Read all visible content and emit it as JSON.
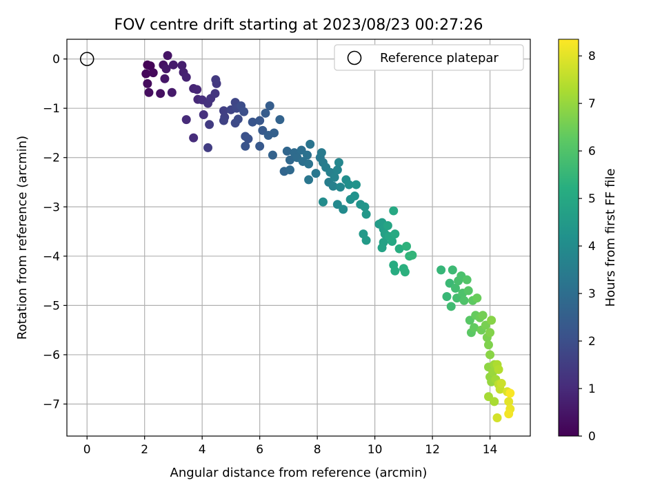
{
  "chart_data": {
    "type": "scatter",
    "title": "FOV centre drift starting at 2023/08/23 00:27:26",
    "xlabel": "Angular distance from reference (arcmin)",
    "ylabel": "Rotation from reference (arcmin)",
    "xlim": [
      -0.7,
      15.4
    ],
    "ylim": [
      -7.65,
      0.4
    ],
    "xticks": [
      0,
      2,
      4,
      6,
      8,
      10,
      12,
      14
    ],
    "yticks": [
      0,
      -1,
      -2,
      -3,
      -4,
      -5,
      -6,
      -7
    ],
    "grid": true,
    "legend": {
      "placement": "top-right",
      "entries": [
        "Reference platepar"
      ]
    },
    "colorbar": {
      "label": "Hours from first FF file",
      "range": [
        0,
        8.35
      ],
      "ticks": [
        0,
        1,
        2,
        3,
        4,
        5,
        6,
        7,
        8
      ],
      "colormap": "viridis"
    },
    "reference_point": {
      "x": 0,
      "y": 0
    },
    "points": [
      {
        "x": 2.1,
        "y": -0.12,
        "h": 0.05
      },
      {
        "x": 2.2,
        "y": -0.14,
        "h": 0.1
      },
      {
        "x": 2.05,
        "y": -0.3,
        "h": 0.15
      },
      {
        "x": 2.3,
        "y": -0.28,
        "h": 0.2
      },
      {
        "x": 2.1,
        "y": -0.5,
        "h": 0.25
      },
      {
        "x": 2.15,
        "y": -0.68,
        "h": 0.3
      },
      {
        "x": 2.55,
        "y": -0.7,
        "h": 0.35
      },
      {
        "x": 2.65,
        "y": -0.12,
        "h": 0.4
      },
      {
        "x": 2.8,
        "y": 0.07,
        "h": 0.45
      },
      {
        "x": 2.7,
        "y": -0.4,
        "h": 0.5
      },
      {
        "x": 2.75,
        "y": -0.2,
        "h": 0.55
      },
      {
        "x": 2.95,
        "y": -0.68,
        "h": 0.6
      },
      {
        "x": 3.0,
        "y": -0.12,
        "h": 0.65
      },
      {
        "x": 3.3,
        "y": -0.13,
        "h": 0.7
      },
      {
        "x": 3.35,
        "y": -0.27,
        "h": 0.75
      },
      {
        "x": 3.45,
        "y": -0.37,
        "h": 0.8
      },
      {
        "x": 3.7,
        "y": -0.6,
        "h": 0.85
      },
      {
        "x": 3.82,
        "y": -0.62,
        "h": 0.9
      },
      {
        "x": 3.85,
        "y": -0.82,
        "h": 0.95
      },
      {
        "x": 3.45,
        "y": -1.23,
        "h": 1.0
      },
      {
        "x": 3.7,
        "y": -1.6,
        "h": 1.05
      },
      {
        "x": 4.0,
        "y": -0.83,
        "h": 1.1
      },
      {
        "x": 4.05,
        "y": -1.13,
        "h": 1.15
      },
      {
        "x": 4.2,
        "y": -0.9,
        "h": 1.2
      },
      {
        "x": 4.3,
        "y": -0.8,
        "h": 1.25
      },
      {
        "x": 4.45,
        "y": -0.7,
        "h": 1.3
      },
      {
        "x": 4.5,
        "y": -0.5,
        "h": 1.35
      },
      {
        "x": 4.47,
        "y": -0.42,
        "h": 1.4
      },
      {
        "x": 4.25,
        "y": -1.33,
        "h": 1.45
      },
      {
        "x": 4.2,
        "y": -1.8,
        "h": 1.5
      },
      {
        "x": 4.75,
        "y": -1.05,
        "h": 1.55
      },
      {
        "x": 4.78,
        "y": -1.18,
        "h": 1.6
      },
      {
        "x": 4.75,
        "y": -1.25,
        "h": 1.65
      },
      {
        "x": 5.0,
        "y": -1.03,
        "h": 1.7
      },
      {
        "x": 5.15,
        "y": -0.88,
        "h": 1.75
      },
      {
        "x": 5.2,
        "y": -1.0,
        "h": 1.8
      },
      {
        "x": 5.15,
        "y": -1.3,
        "h": 1.85
      },
      {
        "x": 5.25,
        "y": -1.22,
        "h": 1.9
      },
      {
        "x": 5.35,
        "y": -0.95,
        "h": 1.95
      },
      {
        "x": 5.45,
        "y": -1.07,
        "h": 2.0
      },
      {
        "x": 5.5,
        "y": -1.57,
        "h": 2.05
      },
      {
        "x": 5.6,
        "y": -1.62,
        "h": 2.1
      },
      {
        "x": 5.5,
        "y": -1.77,
        "h": 2.15
      },
      {
        "x": 5.75,
        "y": -1.28,
        "h": 2.2
      },
      {
        "x": 6.0,
        "y": -1.25,
        "h": 2.25
      },
      {
        "x": 6.0,
        "y": -1.77,
        "h": 2.3
      },
      {
        "x": 6.1,
        "y": -1.45,
        "h": 2.35
      },
      {
        "x": 6.2,
        "y": -1.1,
        "h": 2.4
      },
      {
        "x": 6.35,
        "y": -0.95,
        "h": 2.45
      },
      {
        "x": 6.3,
        "y": -1.55,
        "h": 2.5
      },
      {
        "x": 6.5,
        "y": -1.5,
        "h": 2.55
      },
      {
        "x": 6.45,
        "y": -1.95,
        "h": 2.6
      },
      {
        "x": 6.7,
        "y": -1.23,
        "h": 2.65
      },
      {
        "x": 6.85,
        "y": -2.28,
        "h": 2.7
      },
      {
        "x": 6.95,
        "y": -1.87,
        "h": 2.75
      },
      {
        "x": 7.05,
        "y": -2.05,
        "h": 2.8
      },
      {
        "x": 7.05,
        "y": -2.25,
        "h": 2.85
      },
      {
        "x": 7.2,
        "y": -1.9,
        "h": 2.9
      },
      {
        "x": 7.3,
        "y": -2.0,
        "h": 2.95
      },
      {
        "x": 7.45,
        "y": -1.85,
        "h": 3.0
      },
      {
        "x": 7.5,
        "y": -2.08,
        "h": 3.05
      },
      {
        "x": 7.65,
        "y": -1.95,
        "h": 3.1
      },
      {
        "x": 7.7,
        "y": -2.13,
        "h": 3.15
      },
      {
        "x": 7.75,
        "y": -1.73,
        "h": 3.2
      },
      {
        "x": 7.7,
        "y": -2.45,
        "h": 3.25
      },
      {
        "x": 7.95,
        "y": -2.32,
        "h": 3.3
      },
      {
        "x": 8.1,
        "y": -2.0,
        "h": 3.35
      },
      {
        "x": 8.15,
        "y": -1.9,
        "h": 3.4
      },
      {
        "x": 8.2,
        "y": -2.1,
        "h": 3.45
      },
      {
        "x": 8.3,
        "y": -2.2,
        "h": 3.5
      },
      {
        "x": 8.4,
        "y": -2.5,
        "h": 3.55
      },
      {
        "x": 8.45,
        "y": -2.3,
        "h": 3.6
      },
      {
        "x": 8.55,
        "y": -2.58,
        "h": 3.65
      },
      {
        "x": 8.6,
        "y": -2.4,
        "h": 3.7
      },
      {
        "x": 8.7,
        "y": -2.25,
        "h": 3.75
      },
      {
        "x": 8.75,
        "y": -2.1,
        "h": 3.8
      },
      {
        "x": 8.8,
        "y": -2.6,
        "h": 3.85
      },
      {
        "x": 8.7,
        "y": -2.95,
        "h": 3.9
      },
      {
        "x": 8.9,
        "y": -3.05,
        "h": 3.95
      },
      {
        "x": 8.2,
        "y": -2.9,
        "h": 4.0
      },
      {
        "x": 9.0,
        "y": -2.45,
        "h": 4.05
      },
      {
        "x": 9.1,
        "y": -2.55,
        "h": 4.1
      },
      {
        "x": 9.15,
        "y": -2.85,
        "h": 4.15
      },
      {
        "x": 9.3,
        "y": -2.78,
        "h": 4.2
      },
      {
        "x": 9.35,
        "y": -2.55,
        "h": 4.25
      },
      {
        "x": 9.5,
        "y": -2.95,
        "h": 4.3
      },
      {
        "x": 9.65,
        "y": -3.0,
        "h": 4.35
      },
      {
        "x": 9.7,
        "y": -3.15,
        "h": 4.4
      },
      {
        "x": 9.6,
        "y": -3.55,
        "h": 4.45
      },
      {
        "x": 9.7,
        "y": -3.68,
        "h": 4.5
      },
      {
        "x": 10.15,
        "y": -3.35,
        "h": 4.55
      },
      {
        "x": 10.25,
        "y": -3.32,
        "h": 4.6
      },
      {
        "x": 10.3,
        "y": -3.45,
        "h": 4.65
      },
      {
        "x": 10.35,
        "y": -3.55,
        "h": 4.7
      },
      {
        "x": 10.3,
        "y": -3.72,
        "h": 4.75
      },
      {
        "x": 10.25,
        "y": -3.83,
        "h": 4.8
      },
      {
        "x": 10.45,
        "y": -3.38,
        "h": 4.85
      },
      {
        "x": 10.5,
        "y": -3.6,
        "h": 4.9
      },
      {
        "x": 10.6,
        "y": -3.7,
        "h": 4.95
      },
      {
        "x": 10.65,
        "y": -3.08,
        "h": 5.0
      },
      {
        "x": 10.7,
        "y": -3.55,
        "h": 5.05
      },
      {
        "x": 10.65,
        "y": -4.18,
        "h": 5.1
      },
      {
        "x": 10.7,
        "y": -4.3,
        "h": 5.15
      },
      {
        "x": 10.85,
        "y": -3.85,
        "h": 5.2
      },
      {
        "x": 11.0,
        "y": -4.25,
        "h": 5.25
      },
      {
        "x": 11.05,
        "y": -4.32,
        "h": 5.3
      },
      {
        "x": 11.1,
        "y": -3.8,
        "h": 5.35
      },
      {
        "x": 11.2,
        "y": -4.0,
        "h": 5.4
      },
      {
        "x": 11.3,
        "y": -3.98,
        "h": 5.45
      },
      {
        "x": 12.3,
        "y": -4.28,
        "h": 5.5
      },
      {
        "x": 12.5,
        "y": -4.82,
        "h": 5.55
      },
      {
        "x": 12.6,
        "y": -4.55,
        "h": 5.6
      },
      {
        "x": 12.7,
        "y": -4.28,
        "h": 5.65
      },
      {
        "x": 12.65,
        "y": -5.02,
        "h": 5.7
      },
      {
        "x": 12.8,
        "y": -4.65,
        "h": 5.75
      },
      {
        "x": 12.85,
        "y": -4.85,
        "h": 5.8
      },
      {
        "x": 12.9,
        "y": -4.5,
        "h": 5.85
      },
      {
        "x": 13.0,
        "y": -4.4,
        "h": 5.9
      },
      {
        "x": 13.05,
        "y": -4.75,
        "h": 5.95
      },
      {
        "x": 13.1,
        "y": -4.9,
        "h": 6.0
      },
      {
        "x": 13.2,
        "y": -4.48,
        "h": 6.05
      },
      {
        "x": 13.25,
        "y": -4.7,
        "h": 6.1
      },
      {
        "x": 13.3,
        "y": -5.3,
        "h": 6.15
      },
      {
        "x": 13.35,
        "y": -5.55,
        "h": 6.2
      },
      {
        "x": 13.4,
        "y": -4.9,
        "h": 6.25
      },
      {
        "x": 13.45,
        "y": -5.45,
        "h": 6.3
      },
      {
        "x": 13.5,
        "y": -5.2,
        "h": 6.35
      },
      {
        "x": 13.55,
        "y": -4.85,
        "h": 6.4
      },
      {
        "x": 13.65,
        "y": -5.25,
        "h": 6.45
      },
      {
        "x": 13.7,
        "y": -5.5,
        "h": 6.5
      },
      {
        "x": 13.75,
        "y": -5.2,
        "h": 6.55
      },
      {
        "x": 13.85,
        "y": -5.4,
        "h": 6.6
      },
      {
        "x": 13.9,
        "y": -5.65,
        "h": 6.65
      },
      {
        "x": 13.95,
        "y": -5.8,
        "h": 6.7
      },
      {
        "x": 14.0,
        "y": -5.55,
        "h": 6.75
      },
      {
        "x": 14.05,
        "y": -5.3,
        "h": 6.8
      },
      {
        "x": 14.0,
        "y": -6.0,
        "h": 6.85
      },
      {
        "x": 13.95,
        "y": -6.25,
        "h": 6.9
      },
      {
        "x": 14.0,
        "y": -6.45,
        "h": 6.95
      },
      {
        "x": 14.05,
        "y": -6.55,
        "h": 7.0
      },
      {
        "x": 14.1,
        "y": -6.35,
        "h": 7.05
      },
      {
        "x": 14.15,
        "y": -6.2,
        "h": 7.1
      },
      {
        "x": 14.2,
        "y": -6.5,
        "h": 7.15
      },
      {
        "x": 13.95,
        "y": -6.85,
        "h": 7.2
      },
      {
        "x": 14.15,
        "y": -6.95,
        "h": 7.25
      },
      {
        "x": 14.25,
        "y": -6.2,
        "h": 7.3
      },
      {
        "x": 14.3,
        "y": -6.3,
        "h": 7.4
      },
      {
        "x": 14.3,
        "y": -6.6,
        "h": 7.5
      },
      {
        "x": 14.35,
        "y": -6.7,
        "h": 7.6
      },
      {
        "x": 14.4,
        "y": -6.58,
        "h": 7.7
      },
      {
        "x": 14.25,
        "y": -7.28,
        "h": 7.8
      },
      {
        "x": 14.6,
        "y": -6.75,
        "h": 7.9
      },
      {
        "x": 14.65,
        "y": -6.95,
        "h": 8.0
      },
      {
        "x": 14.7,
        "y": -7.1,
        "h": 8.1
      },
      {
        "x": 14.65,
        "y": -7.2,
        "h": 8.2
      },
      {
        "x": 14.7,
        "y": -6.78,
        "h": 8.3
      }
    ]
  }
}
